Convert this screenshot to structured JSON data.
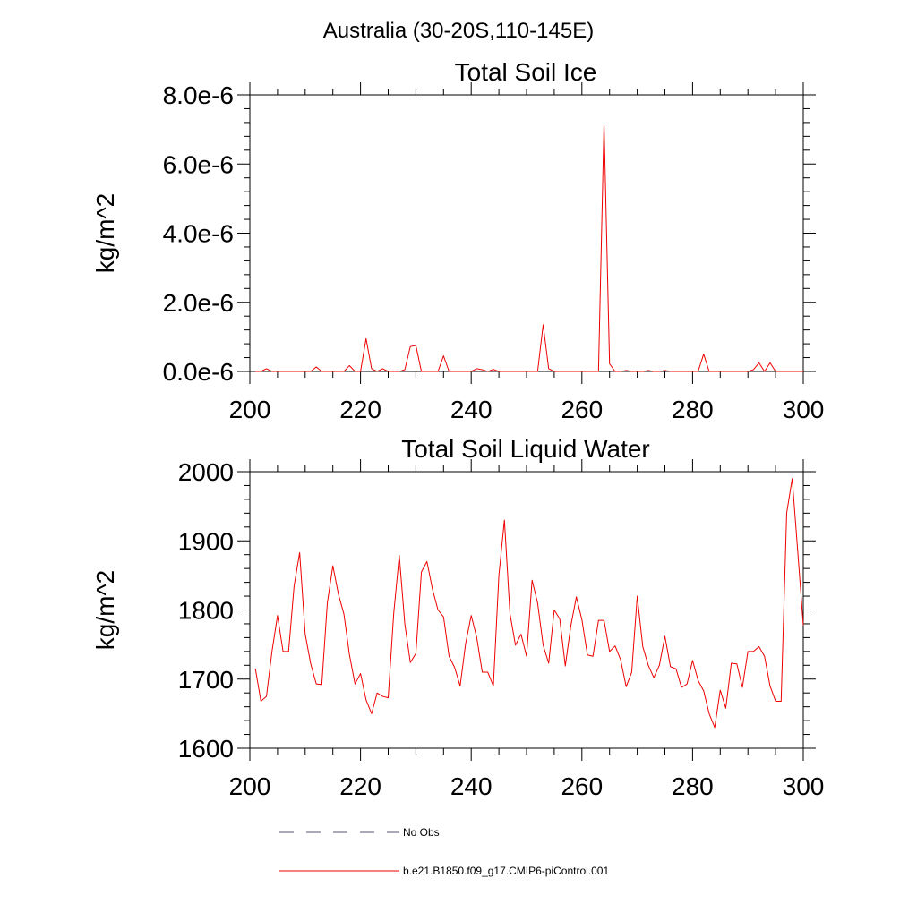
{
  "figure": {
    "suptitle": "Australia (30-20S,110-145E)"
  },
  "legend": {
    "items": [
      {
        "label": "No Obs",
        "style": "dashed",
        "color": "#555577"
      },
      {
        "label": "b.e21.B1850.f09_g17.CMIP6-piControl.001",
        "style": "solid",
        "color": "#ee0000"
      }
    ]
  },
  "chart_data": [
    {
      "type": "line",
      "title": "Total Soil Ice",
      "xlabel": "",
      "ylabel": "kg/m^2",
      "xlim": [
        200,
        300
      ],
      "ylim": [
        0,
        8e-06
      ],
      "xticks": [
        200,
        220,
        240,
        260,
        280,
        300
      ],
      "xtick_labels": [
        "200",
        "220",
        "240",
        "260",
        "280",
        "300"
      ],
      "yticks": [
        0,
        2e-06,
        4e-06,
        6e-06,
        8e-06
      ],
      "ytick_labels": [
        "0.0e-6",
        "2.0e-6",
        "4.0e-6",
        "6.0e-6",
        "8.0e-6"
      ],
      "grid": false,
      "series": [
        {
          "color": "#ee0000",
          "x_start": 201,
          "x_step": 1,
          "values": [
            0,
            0,
            8e-08,
            0,
            0,
            0,
            0,
            0,
            0,
            0,
            0,
            1.3e-07,
            0,
            0,
            0,
            0,
            0,
            1.7e-07,
            0,
            0,
            9.5e-07,
            8e-08,
            0,
            8e-08,
            0,
            0,
            0,
            5e-08,
            7.2e-07,
            7.5e-07,
            0,
            0,
            0,
            0,
            4.5e-07,
            0,
            0,
            0,
            0,
            0,
            8e-08,
            5e-08,
            0,
            6e-08,
            0,
            0,
            0,
            0,
            0,
            0,
            0,
            0,
            1.35e-06,
            8e-08,
            0,
            0,
            0,
            0,
            0,
            0,
            0,
            0,
            0,
            7.2e-06,
            2.2e-07,
            0,
            0,
            3e-08,
            0,
            0,
            0,
            3e-08,
            0,
            0,
            3e-08,
            0,
            0,
            0,
            0,
            0,
            0,
            5e-07,
            0,
            0,
            0,
            0,
            0,
            0,
            0,
            0,
            5e-08,
            2.5e-07,
            0,
            2.5e-07,
            0,
            0,
            0,
            0,
            0,
            0
          ]
        }
      ]
    },
    {
      "type": "line",
      "title": "Total Soil Liquid Water",
      "xlabel": "",
      "ylabel": "kg/m^2",
      "xlim": [
        200,
        300
      ],
      "ylim": [
        1600,
        2000
      ],
      "xticks": [
        200,
        220,
        240,
        260,
        280,
        300
      ],
      "xtick_labels": [
        "200",
        "220",
        "240",
        "260",
        "280",
        "300"
      ],
      "yticks": [
        1600,
        1700,
        1800,
        1900,
        2000
      ],
      "ytick_labels": [
        "1600",
        "1700",
        "1800",
        "1900",
        "2000"
      ],
      "grid": false,
      "series": [
        {
          "color": "#ee0000",
          "x_start": 201,
          "x_step": 1,
          "values": [
            1715,
            1668,
            1675,
            1740,
            1792,
            1740,
            1740,
            1835,
            1883,
            1765,
            1722,
            1693,
            1692,
            1810,
            1864,
            1823,
            1794,
            1735,
            1693,
            1708,
            1670,
            1650,
            1680,
            1675,
            1673,
            1795,
            1879,
            1780,
            1724,
            1737,
            1855,
            1870,
            1830,
            1800,
            1790,
            1733,
            1717,
            1690,
            1752,
            1792,
            1760,
            1710,
            1710,
            1690,
            1850,
            1930,
            1795,
            1749,
            1765,
            1733,
            1843,
            1810,
            1749,
            1723,
            1800,
            1787,
            1719,
            1777,
            1819,
            1786,
            1735,
            1733,
            1785,
            1785,
            1740,
            1748,
            1728,
            1689,
            1710,
            1820,
            1747,
            1720,
            1702,
            1720,
            1762,
            1718,
            1715,
            1688,
            1693,
            1727,
            1698,
            1683,
            1650,
            1630,
            1684,
            1658,
            1723,
            1722,
            1688,
            1740,
            1740,
            1747,
            1733,
            1690,
            1668,
            1668,
            1940,
            1990,
            1885,
            1778
          ]
        }
      ]
    }
  ]
}
